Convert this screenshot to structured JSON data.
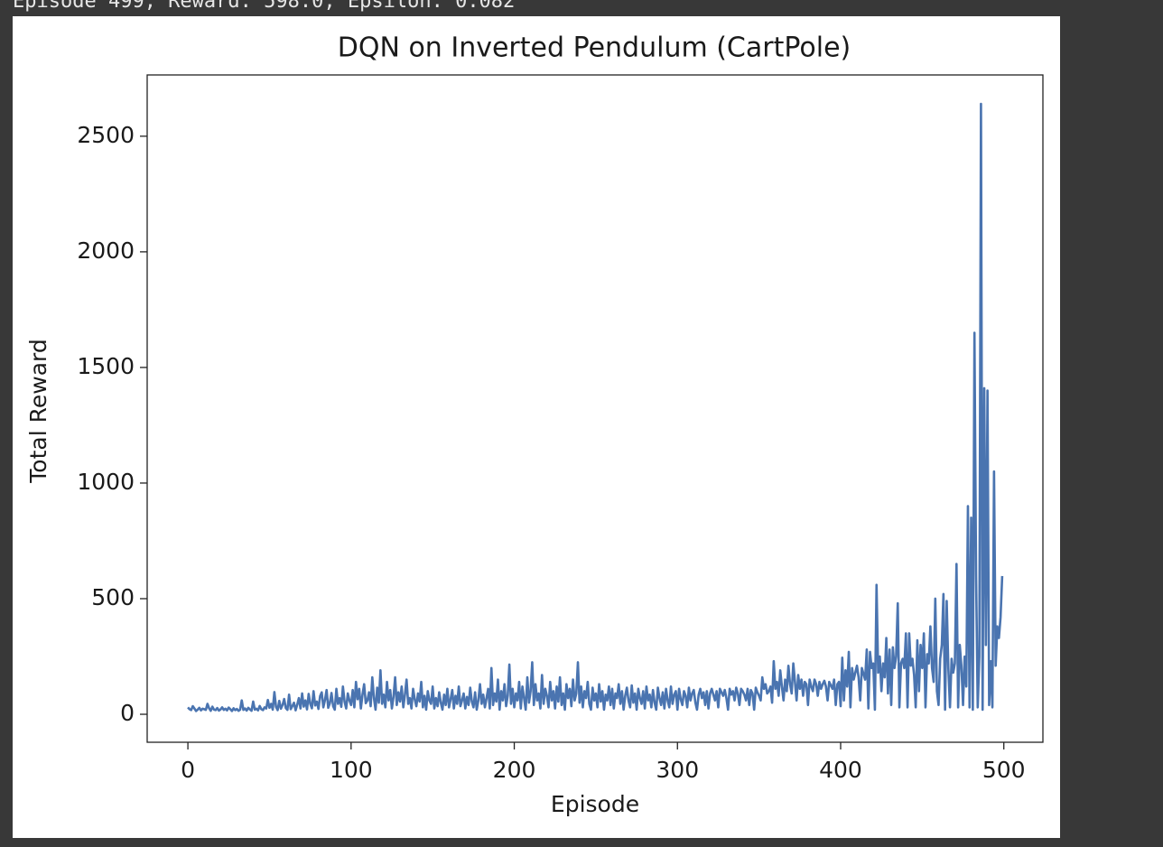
{
  "output_text": "Episode 499, Reward: 598.0, Epsilon: 0.082",
  "chart_data": {
    "type": "line",
    "title": "DQN on Inverted Pendulum (CartPole)",
    "x_label": "Episode",
    "y_label": "Total Reward",
    "color": "#4a74b0",
    "xlim": [
      -24.95,
      523.95
    ],
    "ylim": [
      -121,
      2765
    ],
    "xticks": [
      0,
      100,
      200,
      300,
      400,
      500
    ],
    "yticks": [
      0,
      500,
      1000,
      1500,
      2000,
      2500
    ],
    "x": [
      0,
      1,
      2,
      3,
      4,
      5,
      6,
      7,
      8,
      9,
      10,
      11,
      12,
      13,
      14,
      15,
      16,
      17,
      18,
      19,
      20,
      21,
      22,
      23,
      24,
      25,
      26,
      27,
      28,
      29,
      30,
      31,
      32,
      33,
      34,
      35,
      36,
      37,
      38,
      39,
      40,
      41,
      42,
      43,
      44,
      45,
      46,
      47,
      48,
      49,
      50,
      51,
      52,
      53,
      54,
      55,
      56,
      57,
      58,
      59,
      60,
      61,
      62,
      63,
      64,
      65,
      66,
      67,
      68,
      69,
      70,
      71,
      72,
      73,
      74,
      75,
      76,
      77,
      78,
      79,
      80,
      81,
      82,
      83,
      84,
      85,
      86,
      87,
      88,
      89,
      90,
      91,
      92,
      93,
      94,
      95,
      96,
      97,
      98,
      99,
      100,
      101,
      102,
      103,
      104,
      105,
      106,
      107,
      108,
      109,
      110,
      111,
      112,
      113,
      114,
      115,
      116,
      117,
      118,
      119,
      120,
      121,
      122,
      123,
      124,
      125,
      126,
      127,
      128,
      129,
      130,
      131,
      132,
      133,
      134,
      135,
      136,
      137,
      138,
      139,
      140,
      141,
      142,
      143,
      144,
      145,
      146,
      147,
      148,
      149,
      150,
      151,
      152,
      153,
      154,
      155,
      156,
      157,
      158,
      159,
      160,
      161,
      162,
      163,
      164,
      165,
      166,
      167,
      168,
      169,
      170,
      171,
      172,
      173,
      174,
      175,
      176,
      177,
      178,
      179,
      180,
      181,
      182,
      183,
      184,
      185,
      186,
      187,
      188,
      189,
      190,
      191,
      192,
      193,
      194,
      195,
      196,
      197,
      198,
      199,
      200,
      201,
      202,
      203,
      204,
      205,
      206,
      207,
      208,
      209,
      210,
      211,
      212,
      213,
      214,
      215,
      216,
      217,
      218,
      219,
      220,
      221,
      222,
      223,
      224,
      225,
      226,
      227,
      228,
      229,
      230,
      231,
      232,
      233,
      234,
      235,
      236,
      237,
      238,
      239,
      240,
      241,
      242,
      243,
      244,
      245,
      246,
      247,
      248,
      249,
      250,
      251,
      252,
      253,
      254,
      255,
      256,
      257,
      258,
      259,
      260,
      261,
      262,
      263,
      264,
      265,
      266,
      267,
      268,
      269,
      270,
      271,
      272,
      273,
      274,
      275,
      276,
      277,
      278,
      279,
      280,
      281,
      282,
      283,
      284,
      285,
      286,
      287,
      288,
      289,
      290,
      291,
      292,
      293,
      294,
      295,
      296,
      297,
      298,
      299,
      300,
      301,
      302,
      303,
      304,
      305,
      306,
      307,
      308,
      309,
      310,
      311,
      312,
      313,
      314,
      315,
      316,
      317,
      318,
      319,
      320,
      321,
      322,
      323,
      324,
      325,
      326,
      327,
      328,
      329,
      330,
      331,
      332,
      333,
      334,
      335,
      336,
      337,
      338,
      339,
      340,
      341,
      342,
      343,
      344,
      345,
      346,
      347,
      348,
      349,
      350,
      351,
      352,
      353,
      354,
      355,
      356,
      357,
      358,
      359,
      360,
      361,
      362,
      363,
      364,
      365,
      366,
      367,
      368,
      369,
      370,
      371,
      372,
      373,
      374,
      375,
      376,
      377,
      378,
      379,
      380,
      381,
      382,
      383,
      384,
      385,
      386,
      387,
      388,
      389,
      390,
      391,
      392,
      393,
      394,
      395,
      396,
      397,
      398,
      399,
      400,
      401,
      402,
      403,
      404,
      405,
      406,
      407,
      408,
      409,
      410,
      411,
      412,
      413,
      414,
      415,
      416,
      417,
      418,
      419,
      420,
      421,
      422,
      423,
      424,
      425,
      426,
      427,
      428,
      429,
      430,
      431,
      432,
      433,
      434,
      435,
      436,
      437,
      438,
      439,
      440,
      441,
      442,
      443,
      444,
      445,
      446,
      447,
      448,
      449,
      450,
      451,
      452,
      453,
      454,
      455,
      456,
      457,
      458,
      459,
      460,
      461,
      462,
      463,
      464,
      465,
      466,
      467,
      468,
      469,
      470,
      471,
      472,
      473,
      474,
      475,
      476,
      477,
      478,
      479,
      480,
      481,
      482,
      483,
      484,
      485,
      486,
      487,
      488,
      489,
      490,
      491,
      492,
      493,
      494,
      495,
      496,
      497,
      498,
      499
    ],
    "values": [
      30,
      22,
      18,
      35,
      25,
      14,
      20,
      28,
      17,
      24,
      22,
      19,
      45,
      26,
      15,
      33,
      20,
      18,
      27,
      16,
      21,
      30,
      19,
      24,
      17,
      29,
      22,
      14,
      26,
      18,
      23,
      15,
      20,
      60,
      19,
      25,
      16,
      28,
      21,
      15,
      55,
      20,
      24,
      17,
      36,
      22,
      18,
      30,
      25,
      62,
      28,
      45,
      20,
      96,
      32,
      18,
      58,
      24,
      40,
      66,
      27,
      19,
      85,
      22,
      35,
      50,
      17,
      42,
      70,
      25,
      90,
      33,
      60,
      21,
      88,
      45,
      26,
      100,
      38,
      55,
      23,
      78,
      95,
      30,
      62,
      105,
      28,
      48,
      92,
      35,
      20,
      110,
      45,
      70,
      32,
      120,
      55,
      25,
      90,
      60,
      40,
      105,
      30,
      140,
      65,
      110,
      25,
      85,
      130,
      48,
      60,
      95,
      35,
      160,
      70,
      20,
      115,
      50,
      190,
      45,
      85,
      30,
      140,
      60,
      105,
      25,
      75,
      160,
      40,
      95,
      55,
      120,
      30,
      85,
      150,
      45,
      70,
      25,
      110,
      65,
      35,
      90,
      55,
      140,
      30,
      80,
      20,
      100,
      60,
      45,
      120,
      25,
      70,
      35,
      95,
      50,
      20,
      85,
      40,
      110,
      30,
      65,
      105,
      25,
      80,
      45,
      120,
      35,
      60,
      90,
      25,
      75,
      40,
      115,
      55,
      30,
      95,
      20,
      60,
      130,
      45,
      85,
      30,
      70,
      110,
      25,
      200,
      40,
      90,
      55,
      150,
      20,
      100,
      60,
      130,
      35,
      80,
      215,
      45,
      110,
      30,
      90,
      60,
      140,
      25,
      120,
      70,
      20,
      160,
      50,
      100,
      225,
      40,
      130,
      60,
      90,
      25,
      170,
      45,
      110,
      80,
      30,
      140,
      60,
      100,
      25,
      120,
      55,
      160,
      40,
      90,
      20,
      130,
      70,
      110,
      35,
      150,
      60,
      90,
      225,
      50,
      120,
      30,
      100,
      70,
      140,
      45,
      20,
      115,
      60,
      90,
      30,
      130,
      55,
      100,
      20,
      85,
      60,
      120,
      40,
      110,
      25,
      90,
      70,
      130,
      45,
      100,
      20,
      80,
      115,
      60,
      30,
      125,
      50,
      90,
      20,
      110,
      70,
      45,
      100,
      25,
      120,
      60,
      85,
      30,
      105,
      50,
      20,
      115,
      70,
      40,
      95,
      25,
      110,
      60,
      30,
      120,
      45,
      85,
      100,
      20,
      110,
      65,
      40,
      100,
      80,
      30,
      115,
      60,
      90,
      105,
      50,
      20,
      85,
      110,
      70,
      95,
      40,
      100,
      25,
      90,
      110,
      85,
      60,
      100,
      30,
      110,
      95,
      80,
      105,
      70,
      20,
      110,
      85,
      100,
      60,
      115,
      90,
      40,
      110,
      100,
      85,
      60,
      110,
      40,
      105,
      90,
      20,
      115,
      95,
      80,
      60,
      160,
      110,
      130,
      90,
      100,
      120,
      50,
      230,
      110,
      140,
      80,
      190,
      120,
      60,
      150,
      100,
      210,
      130,
      90,
      220,
      140,
      60,
      170,
      110,
      150,
      80,
      140,
      130,
      40,
      150,
      120,
      100,
      150,
      130,
      80,
      140,
      110,
      130,
      145,
      120,
      60,
      140,
      125,
      110,
      150,
      40,
      130,
      140,
      35,
      245,
      60,
      190,
      120,
      270,
      30,
      200,
      150,
      180,
      210,
      160,
      60,
      200,
      175,
      150,
      280,
      25,
      270,
      200,
      220,
      20,
      560,
      180,
      250,
      100,
      220,
      160,
      330,
      90,
      280,
      40,
      290,
      200,
      250,
      480,
      30,
      220,
      240,
      200,
      350,
      30,
      350,
      210,
      240,
      170,
      30,
      320,
      100,
      300,
      200,
      350,
      30,
      260,
      220,
      380,
      200,
      140,
      500,
      100,
      40,
      240,
      300,
      520,
      20,
      490,
      200,
      30,
      240,
      180,
      220,
      650,
      30,
      300,
      210,
      40,
      250,
      120,
      900,
      30,
      850,
      20,
      1650,
      600,
      30,
      250,
      2640,
      20,
      1410,
      300,
      1400,
      40,
      230,
      30,
      1050,
      210,
      380,
      330,
      420,
      598
    ]
  }
}
